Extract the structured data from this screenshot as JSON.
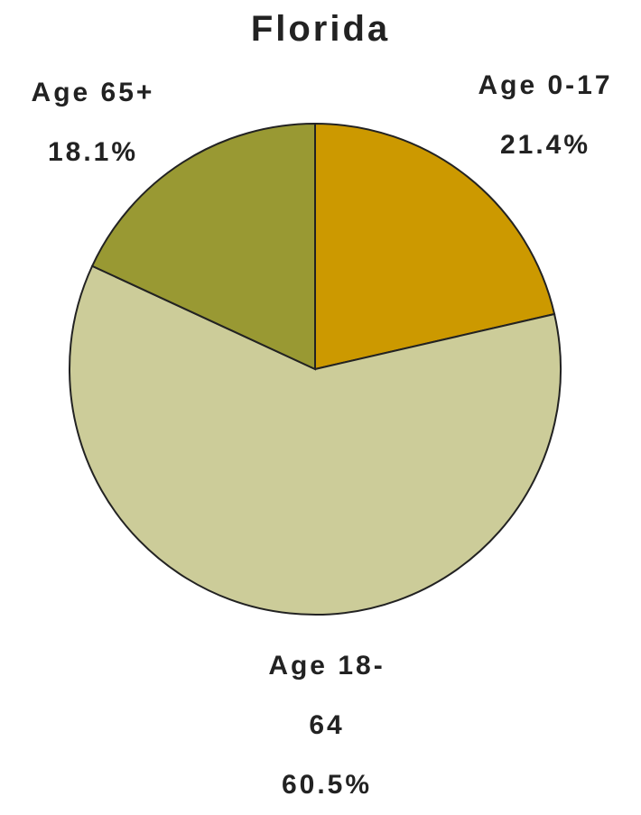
{
  "chart_data": {
    "type": "pie",
    "title": "Florida",
    "categories": [
      "Age 0-17",
      "Age 18-64",
      "Age 65+"
    ],
    "values": [
      21.4,
      60.5,
      18.1
    ],
    "value_labels": [
      "21.4%",
      "60.5%",
      "18.1%"
    ],
    "colors": [
      "#cc9900",
      "#cccc99",
      "#999933"
    ]
  }
}
